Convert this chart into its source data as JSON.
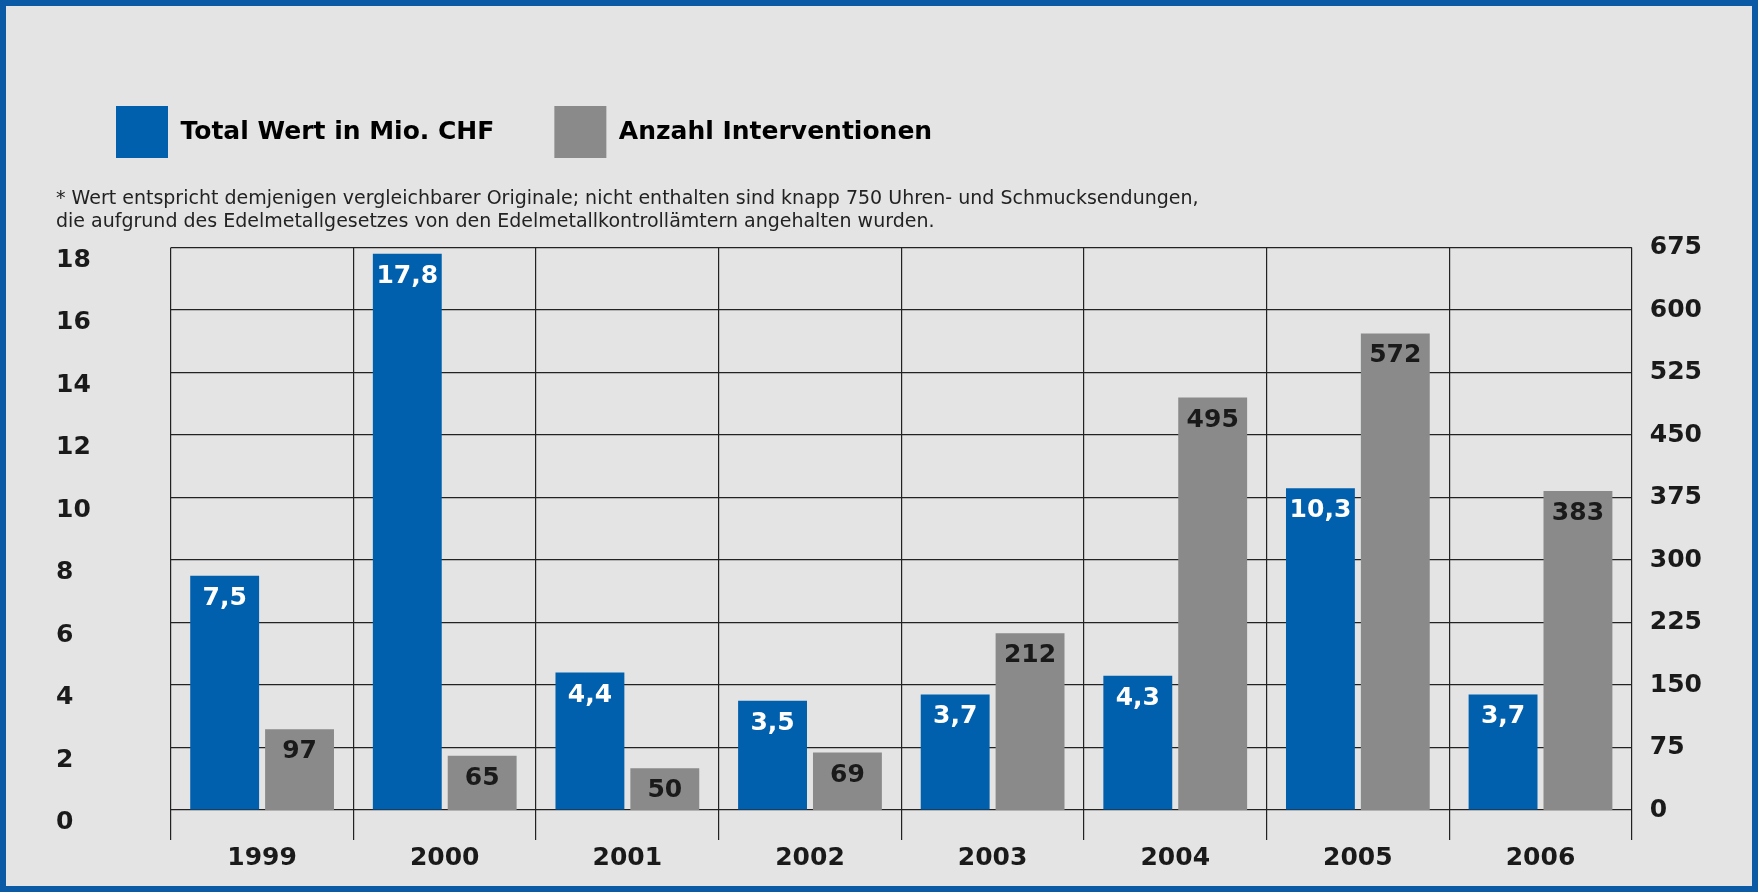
{
  "chart_data": {
    "type": "bar",
    "categories": [
      "1999",
      "2000",
      "2001",
      "2002",
      "2003",
      "2004",
      "2005",
      "2006"
    ],
    "series": [
      {
        "name": "Total Wert in Mio. CHF",
        "color": "#0060ad",
        "values": [
          7.5,
          17.8,
          4.4,
          3.5,
          3.7,
          4.3,
          10.3,
          3.7
        ],
        "value_labels": [
          "7,5",
          "17,8",
          "4,4",
          "3,5",
          "3,7",
          "4,3",
          "10,3",
          "3,7"
        ]
      },
      {
        "name": "Anzahl Interventionen",
        "color": "#8a8a8b",
        "axis": "y2",
        "values": [
          97,
          65,
          50,
          69,
          212,
          495,
          572,
          383
        ],
        "value_labels": [
          "97",
          "65",
          "50",
          "69",
          "212",
          "495",
          "572",
          "383"
        ]
      }
    ],
    "ylim": [
      0,
      18
    ],
    "yticks": [
      0,
      2,
      4,
      6,
      8,
      10,
      12,
      14,
      16,
      18
    ],
    "y2lim": [
      0,
      675
    ],
    "y2ticks": [
      0,
      75,
      150,
      225,
      300,
      375,
      450,
      525,
      600,
      675
    ],
    "grid": true,
    "legend": "top left",
    "annotations": [
      "* Wert entspricht demjenigen vergleichbarer Originale; nicht enthalten sind knapp 750 Uhren- und Schmucksendungen,\ndie aufgrund des Edelmetallgesetzes von den Edelmetallkontrollämtern angehalten wurden."
    ]
  }
}
